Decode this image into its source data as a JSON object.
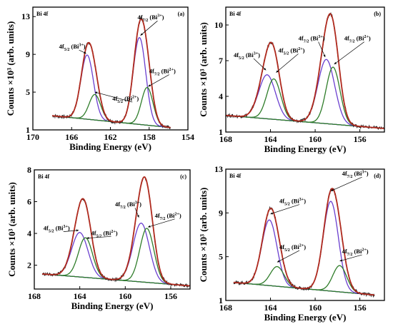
{
  "chart_data": [
    {
      "panel": "(a)",
      "label": "Bi 4f",
      "type": "line",
      "xlabel": "Binding Energy (eV)",
      "ylabel": "Counts ×10³ (arb. units)",
      "xlim": [
        170,
        154
      ],
      "ylim": [
        1,
        14
      ],
      "xticks": [
        170,
        166,
        162,
        158,
        154
      ],
      "yticks": [
        1,
        5,
        9,
        13
      ],
      "baseline": {
        "start": [
          168,
          2.5
        ],
        "end": [
          155.8,
          1.25
        ]
      },
      "peaks": [
        {
          "name": "Bi3+",
          "center": 164.4,
          "height": 6.8,
          "width": 0.65
        },
        {
          "name": "Bi2+",
          "center": 163.6,
          "height": 2.7,
          "width": 0.6
        },
        {
          "name": "Bi3+",
          "center": 159.0,
          "height": 9.2,
          "width": 0.65
        },
        {
          "name": "Bi2+",
          "center": 158.2,
          "height": 4.0,
          "width": 0.6
        }
      ],
      "annotations": [
        {
          "text": "4f5/2 (Bi3+)",
          "x": 167.3,
          "y": 9.6,
          "tx": 164.5,
          "ty": 9.1
        },
        {
          "text": "4f5/2 (Bi2+)",
          "x": 161.8,
          "y": 4.1,
          "tx": 163.6,
          "ty": 5.0
        },
        {
          "text": "4f7/2 (Bi3+)",
          "x": 159.2,
          "y": 12.7,
          "tx": 158.9,
          "ty": 11.0
        },
        {
          "text": "4f7/2 (Bi2+)",
          "x": 158.0,
          "y": 7.0,
          "tx": 158.1,
          "ty": 5.6
        }
      ]
    },
    {
      "panel": "(b)",
      "label": "Bi 4f",
      "type": "line",
      "xlabel": "Binding Energy (eV)",
      "ylabel": "Counts ×10³ (arb. units)",
      "xlim": [
        168,
        153.8
      ],
      "ylim": [
        1,
        11.5
      ],
      "xticks": [
        168,
        164,
        160,
        156
      ],
      "yticks": [
        1,
        4,
        7,
        10
      ],
      "baseline": {
        "start": [
          168,
          2.4
        ],
        "end": [
          153.8,
          1.3
        ]
      },
      "peaks": [
        {
          "name": "Bi3+",
          "center": 164.3,
          "height": 3.7,
          "width": 0.75
        },
        {
          "name": "Bi2+",
          "center": 163.7,
          "height": 3.4,
          "width": 0.62
        },
        {
          "name": "Bi3+",
          "center": 159.0,
          "height": 5.4,
          "width": 0.75
        },
        {
          "name": "Bi2+",
          "center": 158.4,
          "height": 4.8,
          "width": 0.62
        }
      ],
      "annotations": [
        {
          "text": "4f5/2 (Bi3+)",
          "x": 167.3,
          "y": 7.3,
          "tx": 164.4,
          "ty": 6.2
        },
        {
          "text": "4f5/2 (Bi2+)",
          "x": 163.3,
          "y": 7.7,
          "tx": 163.5,
          "ty": 6.0
        },
        {
          "text": "4f7/2 (Bi3+)",
          "x": 161.5,
          "y": 8.7,
          "tx": 159.1,
          "ty": 7.3
        },
        {
          "text": "4f7/2 (Bi2+)",
          "x": 157.4,
          "y": 8.7,
          "tx": 158.3,
          "ty": 6.7
        }
      ]
    },
    {
      "panel": "(c)",
      "label": "Bi 4f",
      "type": "line",
      "xlabel": "Binding Energy (eV)",
      "ylabel": "Counts ×10³ (arb. units)",
      "xlim": [
        168,
        154.3
      ],
      "ylim": [
        0.5,
        8
      ],
      "xticks": [
        168,
        164,
        160,
        156
      ],
      "yticks": [
        2,
        4,
        6,
        8
      ],
      "baseline": {
        "start": [
          167.3,
          1.45
        ],
        "end": [
          154.3,
          0.7
        ]
      },
      "peaks": [
        {
          "name": "Bi3+",
          "center": 164.0,
          "height": 2.8,
          "width": 0.72
        },
        {
          "name": "Bi2+",
          "center": 163.5,
          "height": 2.5,
          "width": 0.62
        },
        {
          "name": "Bi3+",
          "center": 158.6,
          "height": 3.7,
          "width": 0.72
        },
        {
          "name": "Bi2+",
          "center": 158.1,
          "height": 3.4,
          "width": 0.62
        }
      ],
      "annotations": [
        {
          "text": "4f5/2 (Bi3+)",
          "x": 167.2,
          "y": 4.2,
          "tx": 164.1,
          "ty": 4.2
        },
        {
          "text": "4f5/2 (Bi2+)",
          "x": 163.0,
          "y": 3.9,
          "tx": 163.4,
          "ty": 3.7
        },
        {
          "text": "4f7/2 (Bi3+)",
          "x": 160.9,
          "y": 5.7,
          "tx": 158.8,
          "ty": 5.0
        },
        {
          "text": "4f7/2 (Bi2+)",
          "x": 157.4,
          "y": 5.0,
          "tx": 158.0,
          "ty": 4.4
        }
      ]
    },
    {
      "panel": "(d)",
      "label": "Bi 4f",
      "type": "line",
      "xlabel": "Binding Energy (eV)",
      "ylabel": "Counts ×10³ (arb. units)",
      "xlim": [
        168,
        153.8
      ],
      "ylim": [
        1,
        13
      ],
      "xticks": [
        168,
        164,
        160,
        156
      ],
      "yticks": [
        1,
        5,
        9,
        13
      ],
      "baseline": {
        "start": [
          167.3,
          2.65
        ],
        "end": [
          154.7,
          1.5
        ]
      },
      "peaks": [
        {
          "name": "Bi3+",
          "center": 164.1,
          "height": 6.0,
          "width": 0.68
        },
        {
          "name": "Bi2+",
          "center": 163.4,
          "height": 1.8,
          "width": 0.62
        },
        {
          "name": "Bi3+",
          "center": 158.6,
          "height": 8.2,
          "width": 0.68
        },
        {
          "name": "Bi2+",
          "center": 157.8,
          "height": 2.4,
          "width": 0.62
        }
      ],
      "annotations": [
        {
          "text": "4f5/2 (Bi3+)",
          "x": 163.2,
          "y": 9.9,
          "tx": 164.0,
          "ty": 8.9
        },
        {
          "text": "4f5/2 (Bi2+)",
          "x": 163.2,
          "y": 5.7,
          "tx": 163.4,
          "ty": 4.5
        },
        {
          "text": "4f7/2 (Bi3+)",
          "x": 157.6,
          "y": 12.4,
          "tx": 158.6,
          "ty": 11.0
        },
        {
          "text": "4f7/2 (Bi2+)",
          "x": 157.6,
          "y": 5.3,
          "tx": 157.8,
          "ty": 4.6
        }
      ]
    }
  ],
  "colors": {
    "experimental": "#222222",
    "envelope": "#b02a1e",
    "bi3": "#6a3fcf",
    "bi2": "#2f7d2a",
    "baseline": "#1f2fa8"
  }
}
